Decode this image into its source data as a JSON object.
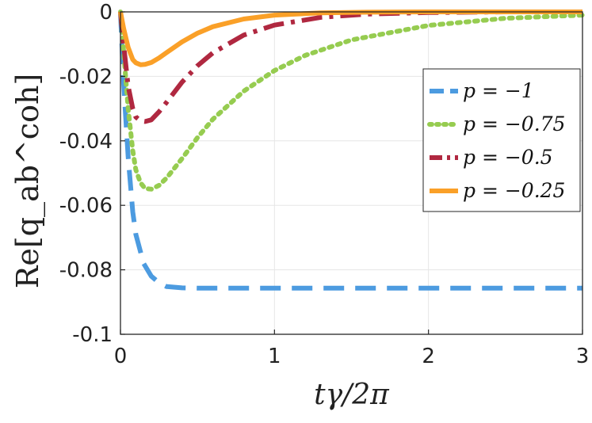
{
  "chart_data": {
    "type": "line",
    "xlabel": "tγ/2π",
    "ylabel": "Re[q_ab^coh]",
    "xlim": [
      0,
      3
    ],
    "ylim": [
      -0.1,
      0
    ],
    "xticks": [
      0,
      1,
      2,
      3
    ],
    "xtick_labels": [
      "0",
      "1",
      "2",
      "3"
    ],
    "yticks": [
      0,
      -0.02,
      -0.04,
      -0.06,
      -0.08,
      -0.1
    ],
    "ytick_labels": [
      "0",
      "-0.02",
      "-0.04",
      "-0.06",
      "-0.08",
      "-0.1"
    ],
    "grid": true,
    "legend_position": "right",
    "series": [
      {
        "name": "p = −1",
        "color": "#4C9BE0",
        "style": "dashed",
        "x": [
          0,
          0.02,
          0.05,
          0.08,
          0.1,
          0.15,
          0.2,
          0.25,
          0.3,
          0.4,
          0.5,
          0.7,
          1.0,
          1.5,
          2.0,
          2.5,
          3.0
        ],
        "y": [
          0,
          -0.022,
          -0.045,
          -0.062,
          -0.069,
          -0.078,
          -0.082,
          -0.084,
          -0.0852,
          -0.0856,
          -0.0857,
          -0.0857,
          -0.0857,
          -0.0857,
          -0.0857,
          -0.0857,
          -0.0857
        ]
      },
      {
        "name": "p = −0.75",
        "color": "#96CC50",
        "style": "dotted",
        "x": [
          0,
          0.02,
          0.05,
          0.08,
          0.1,
          0.13,
          0.16,
          0.2,
          0.25,
          0.3,
          0.4,
          0.5,
          0.6,
          0.8,
          1.0,
          1.2,
          1.5,
          2.0,
          2.5,
          3.0
        ],
        "y": [
          0,
          -0.012,
          -0.03,
          -0.043,
          -0.049,
          -0.053,
          -0.0548,
          -0.055,
          -0.0538,
          -0.0515,
          -0.0455,
          -0.039,
          -0.0333,
          -0.0246,
          -0.0182,
          -0.0135,
          -0.0087,
          -0.0042,
          -0.002,
          -0.001
        ]
      },
      {
        "name": "p = −0.5",
        "color": "#B02840",
        "style": "dashdot",
        "x": [
          0,
          0.02,
          0.05,
          0.08,
          0.1,
          0.13,
          0.16,
          0.2,
          0.25,
          0.3,
          0.4,
          0.5,
          0.6,
          0.8,
          1.0,
          1.3,
          1.6,
          2.0,
          2.5,
          3.0
        ],
        "y": [
          0,
          -0.01,
          -0.023,
          -0.03,
          -0.0326,
          -0.0338,
          -0.034,
          -0.0335,
          -0.031,
          -0.028,
          -0.0218,
          -0.0167,
          -0.0127,
          -0.0072,
          -0.0041,
          -0.0017,
          -0.0007,
          -0.0002,
          0,
          0
        ]
      },
      {
        "name": "p = −0.25",
        "color": "#FAA028",
        "style": "solid",
        "x": [
          0,
          0.02,
          0.05,
          0.08,
          0.1,
          0.13,
          0.16,
          0.2,
          0.25,
          0.3,
          0.4,
          0.5,
          0.6,
          0.8,
          1.0,
          1.3,
          1.6,
          2.0,
          3.0
        ],
        "y": [
          0,
          -0.005,
          -0.011,
          -0.0148,
          -0.0158,
          -0.0164,
          -0.0163,
          -0.0157,
          -0.0143,
          -0.0126,
          -0.0093,
          -0.0066,
          -0.0046,
          -0.0022,
          -0.001,
          -0.0003,
          -0.0001,
          0,
          0
        ]
      }
    ]
  }
}
